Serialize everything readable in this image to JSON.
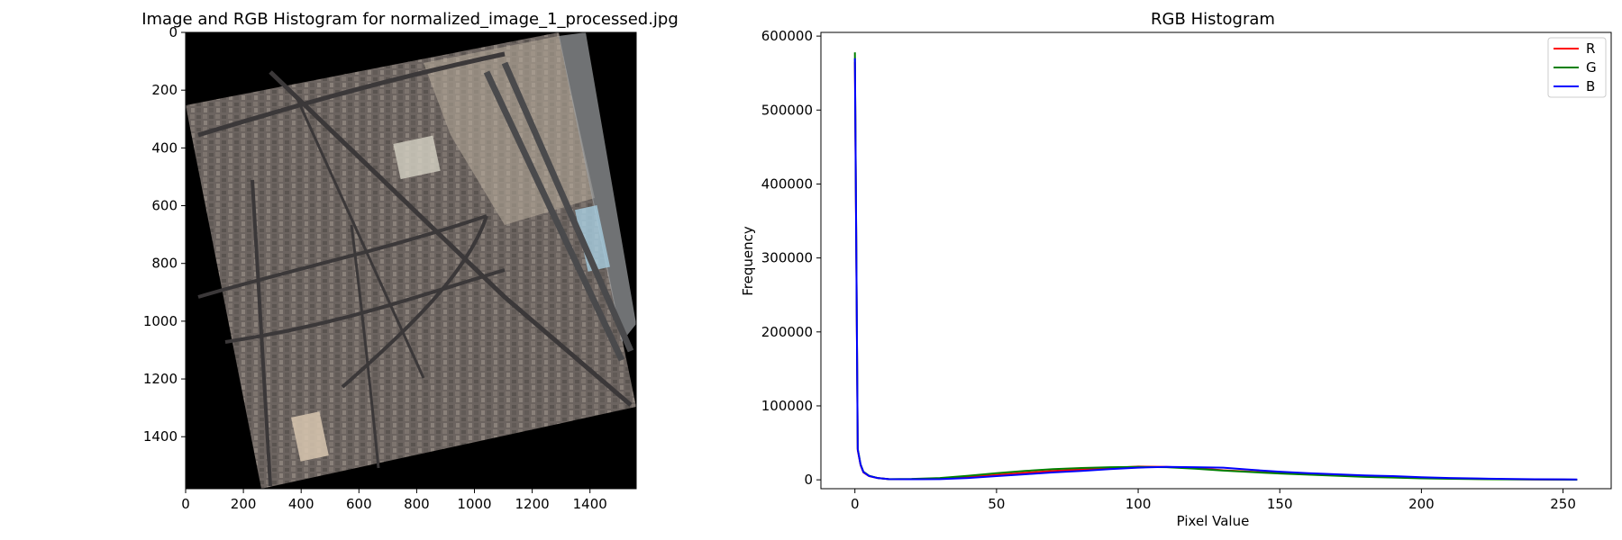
{
  "chart_data": [
    {
      "type": "image",
      "title": "Image and RGB Histogram for normalized_image_1_processed.jpg",
      "image_description_icon": "rotated-aerial-satellite-image",
      "x_ticks": [
        "0",
        "200",
        "400",
        "600",
        "800",
        "1000",
        "1200",
        "1400"
      ],
      "y_ticks": [
        "0",
        "200",
        "400",
        "600",
        "800",
        "1000",
        "1200",
        "1400"
      ],
      "xlim": [
        0,
        1560
      ],
      "ylim": [
        1580,
        0
      ],
      "background_color": "#000000"
    },
    {
      "type": "line",
      "title": "RGB Histogram",
      "xlabel": "Pixel Value",
      "ylabel": "Frequency",
      "xlim": [
        -12,
        267
      ],
      "ylim": [
        -12000,
        605000
      ],
      "x_ticks": [
        "0",
        "50",
        "100",
        "150",
        "200",
        "250"
      ],
      "y_ticks": [
        "0",
        "100000",
        "200000",
        "300000",
        "400000",
        "500000",
        "600000"
      ],
      "legend_position": "top-right",
      "grid": false,
      "series": [
        {
          "name": "R",
          "color": "#ff0000",
          "x": [
            0,
            1,
            2,
            3,
            5,
            8,
            12,
            20,
            30,
            40,
            50,
            60,
            70,
            80,
            90,
            100,
            110,
            120,
            130,
            140,
            150,
            160,
            170,
            180,
            190,
            200,
            210,
            220,
            230,
            240,
            250,
            255
          ],
          "y": [
            565000,
            40000,
            20000,
            10000,
            5000,
            2500,
            1000,
            800,
            1500,
            3500,
            6500,
            9500,
            12000,
            14000,
            16000,
            18000,
            17500,
            16000,
            13000,
            11000,
            9000,
            7500,
            6000,
            4500,
            3500,
            2500,
            1800,
            1200,
            800,
            500,
            300,
            200
          ]
        },
        {
          "name": "G",
          "color": "#008000",
          "x": [
            0,
            1,
            2,
            3,
            5,
            8,
            12,
            20,
            30,
            40,
            50,
            60,
            70,
            80,
            90,
            100,
            110,
            120,
            130,
            140,
            150,
            160,
            170,
            180,
            190,
            200,
            210,
            220,
            230,
            240,
            250,
            255
          ],
          "y": [
            578000,
            42000,
            21000,
            11000,
            5500,
            2500,
            1000,
            1200,
            2500,
            5500,
            9000,
            12000,
            14500,
            16000,
            17000,
            17500,
            17000,
            15000,
            12500,
            10500,
            8500,
            7000,
            5500,
            4000,
            3000,
            2000,
            1400,
            900,
            600,
            400,
            250,
            150
          ]
        },
        {
          "name": "B",
          "color": "#0000ff",
          "x": [
            0,
            1,
            2,
            3,
            5,
            8,
            12,
            20,
            30,
            40,
            50,
            60,
            70,
            80,
            90,
            100,
            110,
            120,
            130,
            140,
            150,
            160,
            170,
            180,
            190,
            200,
            210,
            220,
            230,
            240,
            250,
            255
          ],
          "y": [
            570000,
            41000,
            20500,
            10500,
            5200,
            2400,
            900,
            700,
            1000,
            2500,
            5000,
            7500,
            10000,
            12000,
            14500,
            16500,
            17500,
            17000,
            16500,
            13500,
            11000,
            9000,
            7500,
            6000,
            5000,
            3500,
            2500,
            1800,
            1200,
            800,
            600,
            500
          ]
        }
      ]
    }
  ]
}
